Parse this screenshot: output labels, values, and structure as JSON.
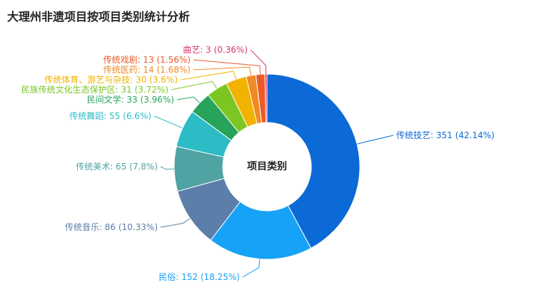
{
  "chart_data": {
    "type": "pie",
    "title": "大理州非遗项目按项目类别统计分析",
    "center_label": "项目类别",
    "slices": [
      {
        "name": "传统技艺",
        "value": 351,
        "percent_label": "42.14%",
        "color": "#0b6ad6"
      },
      {
        "name": "民俗",
        "value": 152,
        "percent_label": "18.25%",
        "color": "#16a2f6"
      },
      {
        "name": "传统音乐",
        "value": 86,
        "percent_label": "10.33%",
        "color": "#5b7fa8"
      },
      {
        "name": "传统美术",
        "value": 65,
        "percent_label": "7.8%",
        "color": "#4fa3a3"
      },
      {
        "name": "传统舞蹈",
        "value": 55,
        "percent_label": "6.6%",
        "color": "#2cbcc6"
      },
      {
        "name": "民间文学",
        "value": 33,
        "percent_label": "3.96%",
        "color": "#27a35a"
      },
      {
        "name": "民族传统文化生态保护区",
        "value": 31,
        "percent_label": "3.72%",
        "color": "#7cc623"
      },
      {
        "name": "传统体育、游艺与杂技",
        "value": 30,
        "percent_label": "3.6%",
        "color": "#f2b200"
      },
      {
        "name": "传统医药",
        "value": 14,
        "percent_label": "1.68%",
        "color": "#ef8a26"
      },
      {
        "name": "传统戏剧",
        "value": 13,
        "percent_label": "1.56%",
        "color": "#ec5a2a"
      },
      {
        "name": "曲艺",
        "value": 3,
        "percent_label": "0.36%",
        "color": "#d9366f"
      }
    ]
  }
}
